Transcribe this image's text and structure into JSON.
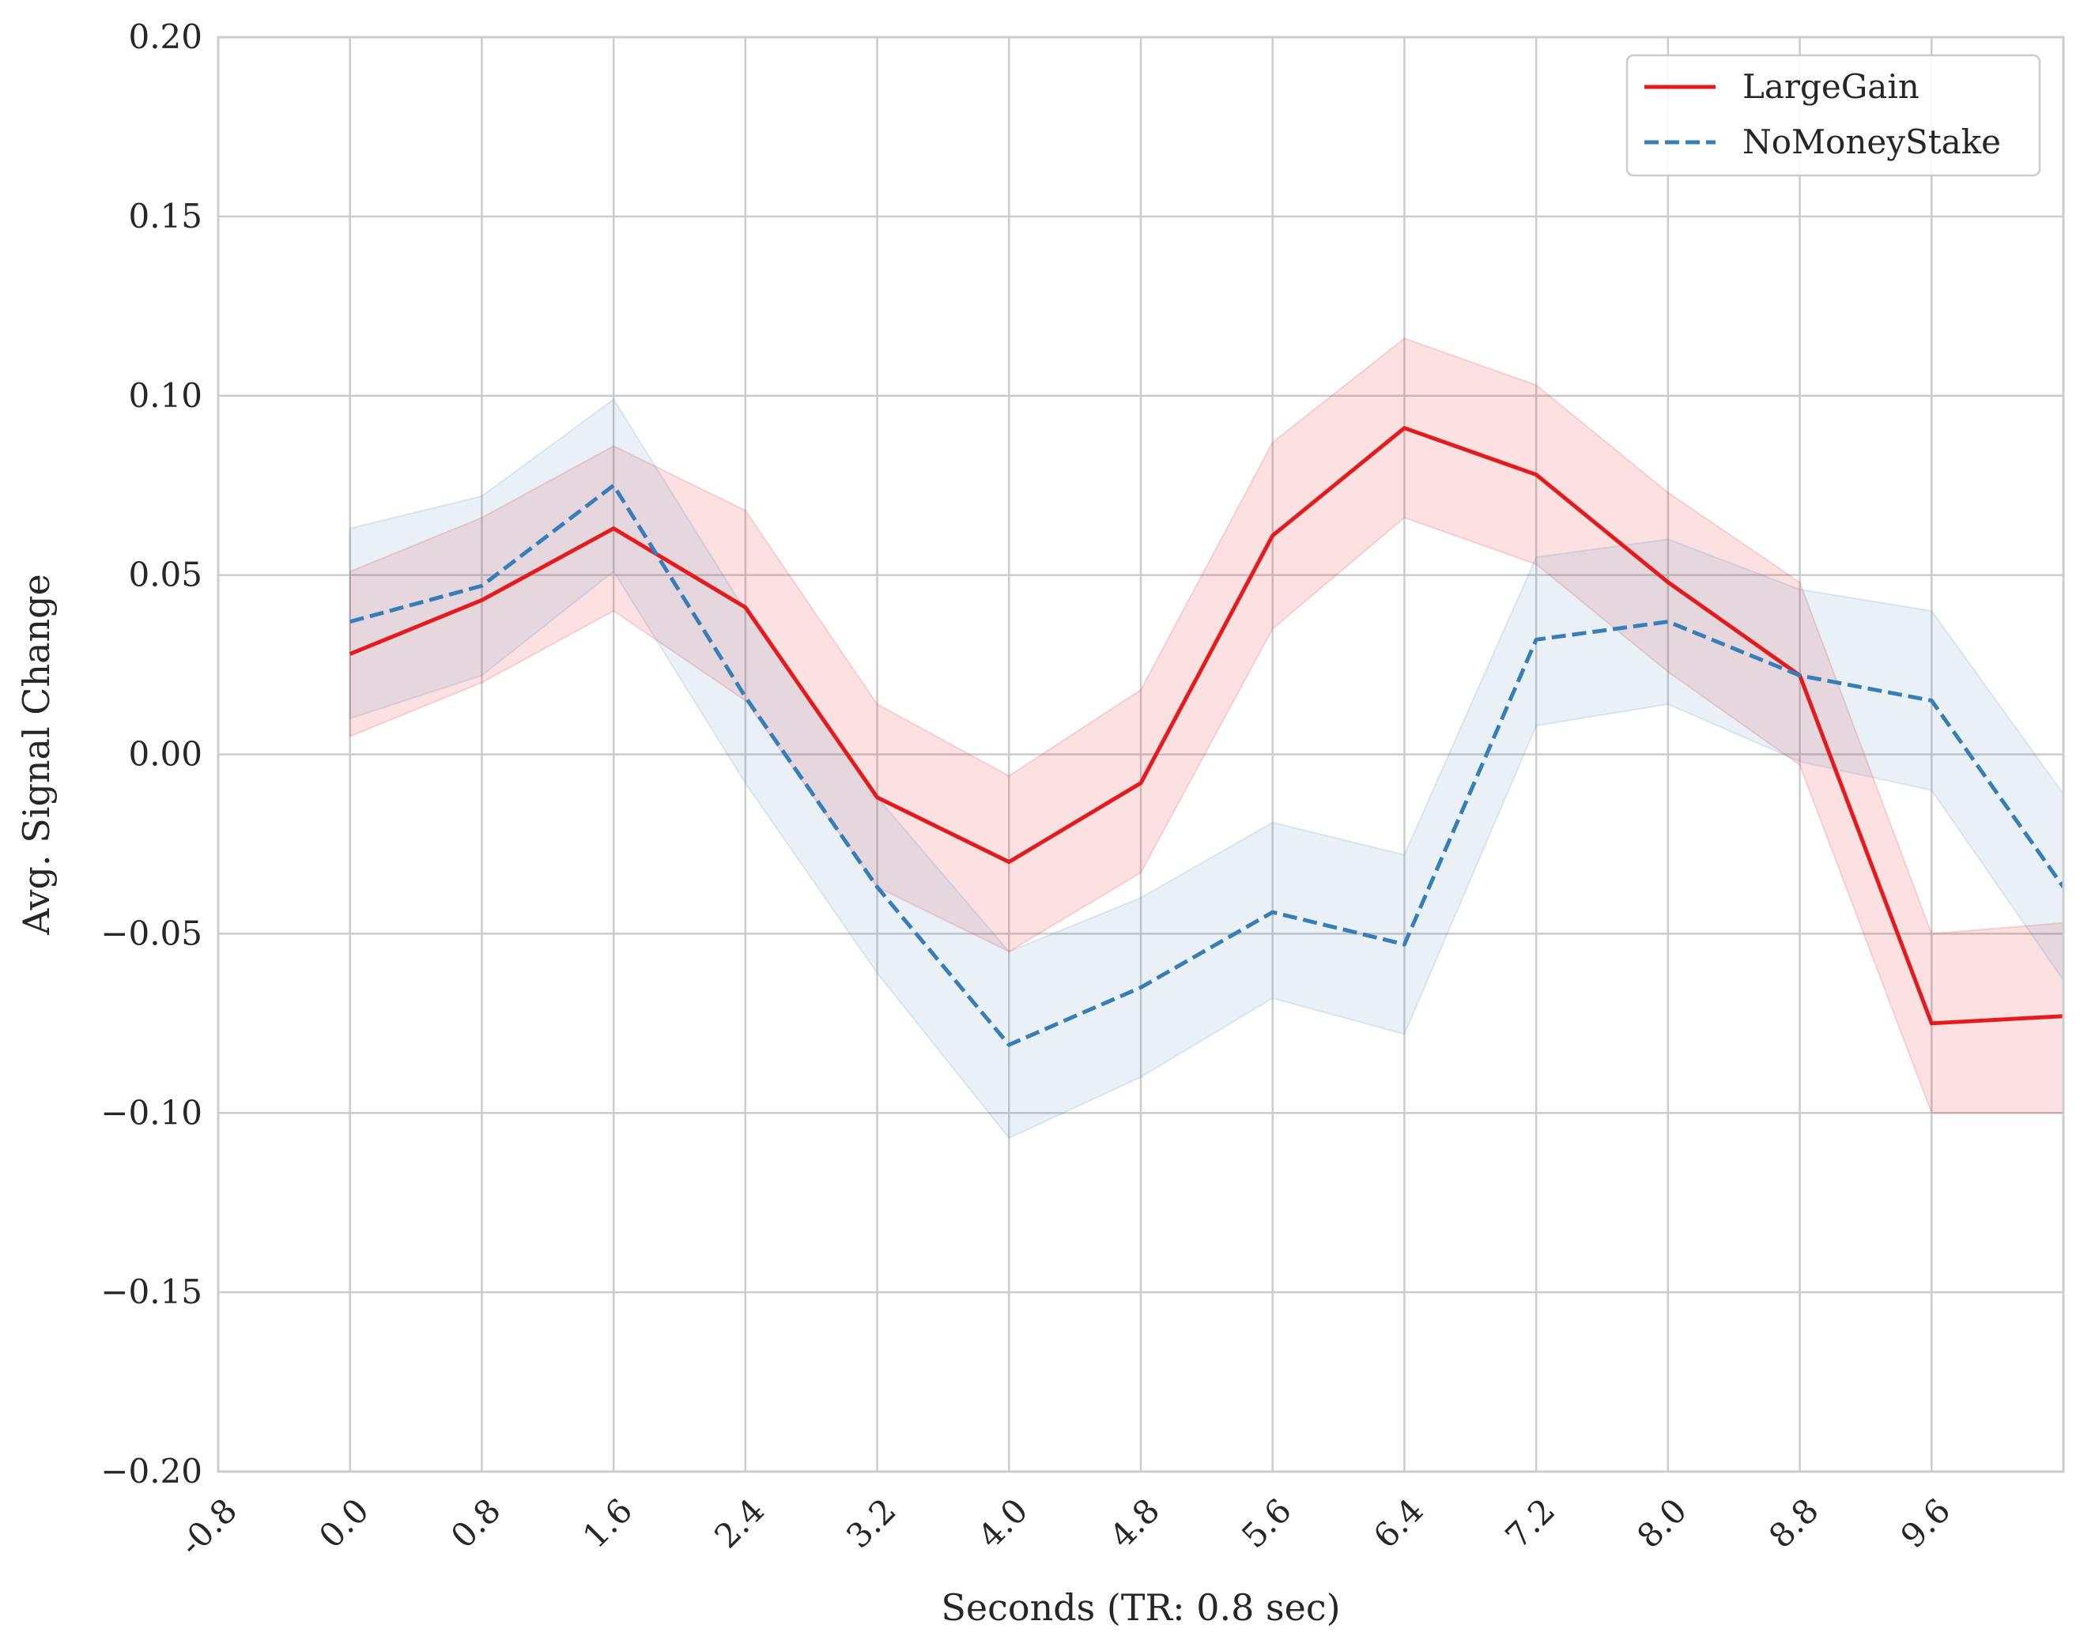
{
  "chart_data": {
    "type": "line",
    "xlabel": "Seconds (TR: 0.8 sec)",
    "ylabel": "Avg. Signal Change",
    "xlim": [
      -0.8,
      10.4
    ],
    "ylim": [
      -0.2,
      0.2
    ],
    "x_ticks": [
      -0.8,
      0.0,
      0.8,
      1.6,
      2.4,
      3.2,
      4.0,
      4.8,
      5.6,
      6.4,
      7.2,
      8.0,
      8.8,
      9.6
    ],
    "x_tick_labels": [
      "-0.8",
      "0.0",
      "0.8",
      "1.6",
      "2.4",
      "3.2",
      "4.0",
      "4.8",
      "5.6",
      "6.4",
      "7.2",
      "8.0",
      "8.8",
      "9.6"
    ],
    "y_ticks": [
      -0.2,
      -0.15,
      -0.1,
      -0.05,
      0.0,
      0.05,
      0.1,
      0.15,
      0.2
    ],
    "y_tick_labels": [
      "−0.20",
      "−0.15",
      "−0.10",
      "−0.05",
      "0.00",
      "0.05",
      "0.10",
      "0.15",
      "0.20"
    ],
    "grid": true,
    "legend_position": "top-right",
    "x": [
      0.0,
      0.8,
      1.6,
      2.4,
      3.2,
      4.0,
      4.8,
      5.6,
      6.4,
      7.2,
      8.0,
      8.8,
      9.6,
      10.4
    ],
    "series": [
      {
        "name": "LargeGain",
        "color": "#e41a1c",
        "linestyle": "solid",
        "values": [
          0.028,
          0.043,
          0.063,
          0.041,
          -0.012,
          -0.03,
          -0.008,
          0.061,
          0.091,
          0.078,
          0.048,
          0.022,
          -0.075,
          -0.073
        ],
        "ci_lower": [
          0.005,
          0.02,
          0.04,
          0.015,
          -0.037,
          -0.055,
          -0.033,
          0.035,
          0.066,
          0.053,
          0.023,
          -0.003,
          -0.1,
          -0.1
        ],
        "ci_upper": [
          0.051,
          0.066,
          0.086,
          0.068,
          0.014,
          -0.006,
          0.018,
          0.087,
          0.116,
          0.103,
          0.073,
          0.048,
          -0.05,
          -0.047
        ]
      },
      {
        "name": "NoMoneyStake",
        "color": "#377eb8",
        "linestyle": "dashed",
        "values": [
          0.037,
          0.047,
          0.075,
          0.016,
          -0.037,
          -0.081,
          -0.065,
          -0.044,
          -0.053,
          0.032,
          0.037,
          0.022,
          0.015,
          -0.037
        ],
        "ci_lower": [
          0.01,
          0.022,
          0.051,
          -0.008,
          -0.061,
          -0.107,
          -0.09,
          -0.068,
          -0.078,
          0.008,
          0.014,
          -0.002,
          -0.01,
          -0.063
        ],
        "ci_upper": [
          0.063,
          0.072,
          0.099,
          0.04,
          -0.012,
          -0.055,
          -0.04,
          -0.019,
          -0.028,
          0.055,
          0.06,
          0.046,
          0.04,
          -0.011
        ]
      }
    ]
  }
}
